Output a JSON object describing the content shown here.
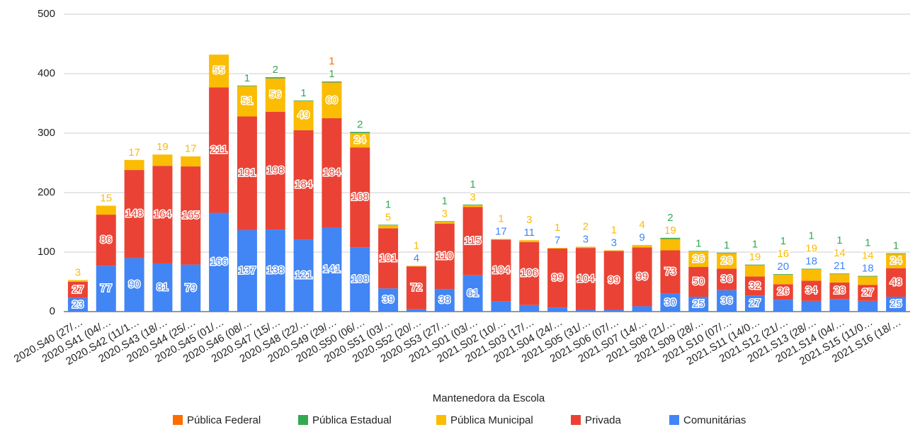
{
  "chart_data": {
    "type": "stacked_bar",
    "x_label": "Mantenedora da Escola",
    "categories": [
      "2020.S40 (27/…",
      "2020.S41 (04/…",
      "2020.S42 (11/1…",
      "2020.S43 (18/…",
      "2020.S44 (25/…",
      "2020.S45 (01/…",
      "2020.S46 (08/…",
      "2020.S47 (15/…",
      "2020.S48 (22/…",
      "2020.S49 (29/…",
      "2020.S50 (06/…",
      "2020.S51 (03/…",
      "2020.S52 (20/…",
      "2020.S53 (27/…",
      "2021.S01 (03/…",
      "2021.S02 (10/…",
      "2021.S03 (17/…",
      "2021.S04 (24/…",
      "2021.S05 (31/…",
      "2021.S06 (07/…",
      "2021.S07 (14/…",
      "2021.S08 (21/…",
      "2021.S09 (28/…",
      "2021.S10 (07/…",
      "2021.S11 (14/0…",
      "2021.S12 (21/…",
      "2021.S13 (28/…",
      "2021.S14 (04/…",
      "2021.S15 (11/0…",
      "2021.S16 (18/…"
    ],
    "series": [
      {
        "name": "Comunitárias",
        "color": "#4285f4",
        "values": [
          23,
          77,
          90,
          81,
          79,
          166,
          137,
          138,
          121,
          141,
          108,
          39,
          4,
          38,
          61,
          17,
          11,
          7,
          3,
          3,
          9,
          30,
          25,
          36,
          27,
          20,
          18,
          21,
          18,
          25
        ]
      },
      {
        "name": "Privada",
        "color": "#ea4335",
        "values": [
          27,
          86,
          148,
          164,
          165,
          211,
          191,
          198,
          184,
          184,
          168,
          101,
          72,
          110,
          115,
          104,
          106,
          99,
          104,
          99,
          99,
          73,
          50,
          36,
          32,
          26,
          34,
          28,
          27,
          48
        ]
      },
      {
        "name": "Pública Municipal",
        "color": "#fbbc04",
        "values": [
          3,
          15,
          17,
          19,
          17,
          55,
          51,
          56,
          49,
          60,
          24,
          5,
          1,
          3,
          3,
          1,
          3,
          1,
          2,
          1,
          4,
          19,
          26,
          26,
          19,
          16,
          19,
          14,
          14,
          24
        ]
      },
      {
        "name": "Pública Estadual",
        "color": "#34a853",
        "values": [
          null,
          null,
          null,
          null,
          null,
          null,
          1,
          2,
          1,
          1,
          2,
          1,
          null,
          1,
          1,
          null,
          null,
          null,
          null,
          null,
          null,
          2,
          1,
          1,
          1,
          1,
          1,
          1,
          1,
          1
        ]
      },
      {
        "name": "Pública Federal",
        "color": "#ff6d01",
        "values": [
          null,
          null,
          null,
          null,
          null,
          null,
          null,
          null,
          null,
          1,
          null,
          null,
          null,
          null,
          null,
          null,
          null,
          null,
          null,
          null,
          null,
          null,
          null,
          null,
          null,
          null,
          null,
          null,
          null,
          null
        ]
      }
    ],
    "ylim": [
      0,
      500
    ],
    "yticks": [
      0,
      100,
      200,
      300,
      400,
      500
    ],
    "grid": true
  }
}
